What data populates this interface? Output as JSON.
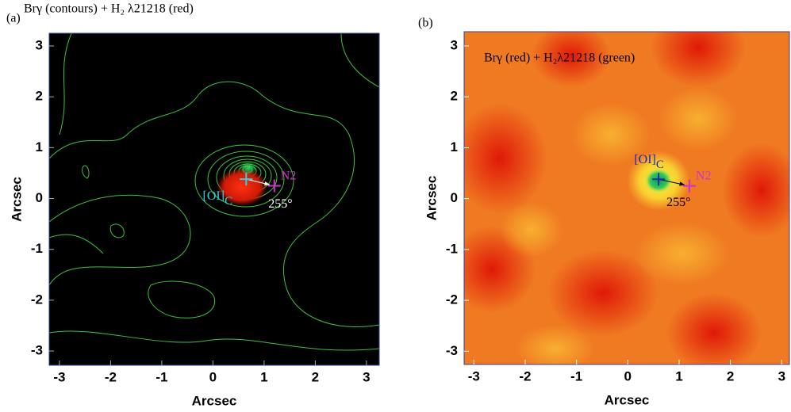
{
  "chart_data": [
    {
      "type": "image",
      "panel_label": "(a)",
      "title": "Brγ (contours) + H₂ λ21218 (red)",
      "xlabel": "Arcsec",
      "ylabel": "Arcsec",
      "xlim": [
        -3.2,
        3.25
      ],
      "ylim": [
        -3.28,
        3.25
      ],
      "xticks": [
        -3,
        -2,
        -1,
        0,
        1,
        2,
        3
      ],
      "yticks": [
        -3,
        -2,
        -1,
        0,
        1,
        2,
        3
      ],
      "points": [
        {
          "name": "[OI]",
          "subscript": "C",
          "x": 0.65,
          "y": 0.38,
          "color": "#33d0e0"
        },
        {
          "name": "N2",
          "x": 1.2,
          "y": 0.25,
          "color": "#d030d0"
        }
      ],
      "angle_label": "255°",
      "angle_color": "#ffffff",
      "title_color": "#000000"
    },
    {
      "type": "image",
      "panel_label": "(b)",
      "title": "Brγ (red) + H₂λ21218 (green)",
      "xlabel": "Arcsec",
      "ylabel": "Arcsec",
      "xlim": [
        -3.19,
        3.15
      ],
      "ylim": [
        -3.26,
        3.28
      ],
      "xticks": [
        -3,
        -2,
        -1,
        0,
        1,
        2,
        3
      ],
      "yticks": [
        -3,
        -2,
        -1,
        0,
        1,
        2,
        3
      ],
      "points": [
        {
          "name": "[OI]",
          "subscript": "C",
          "x": 0.6,
          "y": 0.38,
          "color": "#1a2ab8"
        },
        {
          "name": "N2",
          "x": 1.2,
          "y": 0.25,
          "color": "#d030d0"
        }
      ],
      "angle_label": "255°",
      "angle_color": "#000000",
      "title_color": "#000000"
    }
  ]
}
